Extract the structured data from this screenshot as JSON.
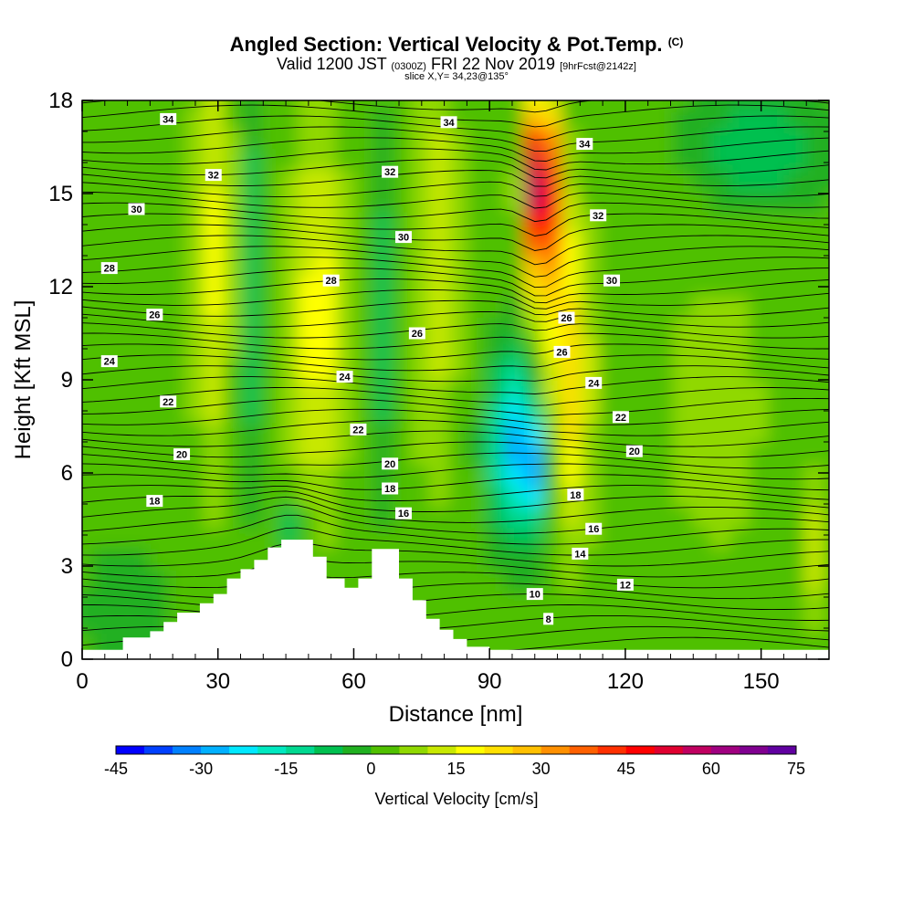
{
  "header": {
    "title": "Angled Section: Vertical Velocity & Pot.Temp.",
    "copyright": "(C)",
    "valid_prefix": "Valid 1200 JST",
    "valid_utc": "(0300Z)",
    "valid_date": "FRI 22 Nov 2019",
    "forecast": "[9hrFcst@2142z]",
    "slice": "slice X,Y= 34,23@135°"
  },
  "chart_data": {
    "type": "heatmap",
    "xlabel": "Distance [nm]",
    "ylabel": "Height [Kft MSL]",
    "xlim": [
      0,
      165
    ],
    "ylim": [
      0,
      18
    ],
    "x_ticks": [
      "0",
      "30",
      "60",
      "90",
      "120",
      "150"
    ],
    "y_ticks": [
      "0",
      "3",
      "6",
      "9",
      "12",
      "15",
      "18"
    ],
    "colorbar": {
      "title": "Vertical Velocity [cm/s]",
      "ticks": [
        "-45",
        "-30",
        "-15",
        "0",
        "15",
        "30",
        "45",
        "60",
        "75"
      ],
      "range": [
        -45,
        75
      ],
      "step": 5,
      "colors": [
        "#0000ff",
        "#0040ff",
        "#0080ff",
        "#00b0ff",
        "#00e8ff",
        "#00e8c0",
        "#00d890",
        "#00c050",
        "#20b020",
        "#50c000",
        "#90d800",
        "#c8e800",
        "#ffff00",
        "#ffe000",
        "#ffc000",
        "#ff9000",
        "#ff6000",
        "#ff3000",
        "#ff0000",
        "#e00030",
        "#c00060",
        "#a00080",
        "#800090",
        "#6000a0"
      ]
    },
    "terrain": [
      [
        0,
        0.3
      ],
      [
        9,
        0.3
      ],
      [
        9,
        0.7
      ],
      [
        15,
        0.7
      ],
      [
        15,
        0.9
      ],
      [
        18,
        0.9
      ],
      [
        18,
        1.2
      ],
      [
        21,
        1.2
      ],
      [
        21,
        1.5
      ],
      [
        26,
        1.5
      ],
      [
        26,
        1.8
      ],
      [
        29,
        1.8
      ],
      [
        29,
        2.1
      ],
      [
        32,
        2.1
      ],
      [
        32,
        2.6
      ],
      [
        35,
        2.6
      ],
      [
        35,
        2.9
      ],
      [
        38,
        2.9
      ],
      [
        38,
        3.2
      ],
      [
        41,
        3.2
      ],
      [
        41,
        3.6
      ],
      [
        44,
        3.6
      ],
      [
        44,
        3.85
      ],
      [
        51,
        3.85
      ],
      [
        51,
        3.3
      ],
      [
        54,
        3.3
      ],
      [
        54,
        2.6
      ],
      [
        58,
        2.6
      ],
      [
        58,
        2.3
      ],
      [
        61,
        2.3
      ],
      [
        61,
        2.6
      ],
      [
        64,
        2.6
      ],
      [
        64,
        3.55
      ],
      [
        70,
        3.55
      ],
      [
        70,
        2.6
      ],
      [
        73,
        2.6
      ],
      [
        73,
        1.9
      ],
      [
        76,
        1.9
      ],
      [
        76,
        1.3
      ],
      [
        79,
        1.3
      ],
      [
        79,
        0.95
      ],
      [
        82,
        0.95
      ],
      [
        82,
        0.65
      ],
      [
        85,
        0.65
      ],
      [
        85,
        0.4
      ],
      [
        90,
        0.4
      ],
      [
        90,
        0.3
      ],
      [
        165,
        0.3
      ]
    ],
    "theta_labels": [
      {
        "text": "34",
        "x": 19,
        "y": 17.4
      },
      {
        "text": "34",
        "x": 81,
        "y": 17.3
      },
      {
        "text": "34",
        "x": 111,
        "y": 16.6
      },
      {
        "text": "32",
        "x": 29,
        "y": 15.6
      },
      {
        "text": "32",
        "x": 68,
        "y": 15.7
      },
      {
        "text": "32",
        "x": 114,
        "y": 14.3
      },
      {
        "text": "30",
        "x": 12,
        "y": 14.5
      },
      {
        "text": "30",
        "x": 71,
        "y": 13.6
      },
      {
        "text": "30",
        "x": 117,
        "y": 12.2
      },
      {
        "text": "28",
        "x": 6,
        "y": 12.6
      },
      {
        "text": "28",
        "x": 55,
        "y": 12.2
      },
      {
        "text": "26",
        "x": 16,
        "y": 11.1
      },
      {
        "text": "26",
        "x": 74,
        "y": 10.5
      },
      {
        "text": "26",
        "x": 107,
        "y": 11.0
      },
      {
        "text": "26",
        "x": 106,
        "y": 9.9
      },
      {
        "text": "24",
        "x": 6,
        "y": 9.6
      },
      {
        "text": "24",
        "x": 58,
        "y": 9.1
      },
      {
        "text": "24",
        "x": 113,
        "y": 8.9
      },
      {
        "text": "22",
        "x": 19,
        "y": 8.3
      },
      {
        "text": "22",
        "x": 61,
        "y": 7.4
      },
      {
        "text": "22",
        "x": 119,
        "y": 7.8
      },
      {
        "text": "20",
        "x": 22,
        "y": 6.6
      },
      {
        "text": "20",
        "x": 68,
        "y": 6.3
      },
      {
        "text": "20",
        "x": 122,
        "y": 6.7
      },
      {
        "text": "18",
        "x": 16,
        "y": 5.1
      },
      {
        "text": "18",
        "x": 68,
        "y": 5.5
      },
      {
        "text": "18",
        "x": 109,
        "y": 5.3
      },
      {
        "text": "16",
        "x": 71,
        "y": 4.7
      },
      {
        "text": "16",
        "x": 113,
        "y": 4.2
      },
      {
        "text": "14",
        "x": 110,
        "y": 3.4
      },
      {
        "text": "12",
        "x": 120,
        "y": 2.4
      },
      {
        "text": "10",
        "x": 100,
        "y": 2.1
      },
      {
        "text": "8",
        "x": 103,
        "y": 1.3
      }
    ]
  }
}
